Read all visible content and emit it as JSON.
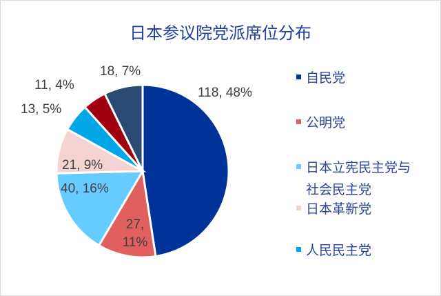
{
  "chart_data": {
    "type": "pie",
    "title": "日本参议院党派席位分布",
    "legend_position": "right",
    "slices": [
      {
        "name": "自民党",
        "value": 118,
        "percent": "48%",
        "label": "118, 48%",
        "color": "#003399"
      },
      {
        "name": "公明党",
        "value": 27,
        "percent": "11%",
        "label_lines": [
          "27,",
          "11%"
        ],
        "color": "#e06060"
      },
      {
        "name": "日本立宪民主党与社会民主党",
        "legend_lines": [
          "日本立宪民主党与",
          "社会民主党"
        ],
        "value": 40,
        "percent": "16%",
        "label": "40, 16%",
        "color": "#66ccff"
      },
      {
        "name": "日本革新党",
        "value": 21,
        "percent": "9%",
        "label": "21, 9%",
        "color": "#f6d3d3"
      },
      {
        "name": "人民民主党",
        "value": 13,
        "percent": "5%",
        "label": "13, 5%",
        "color": "#00a6e6"
      },
      {
        "value": 11,
        "percent": "4%",
        "label": "11, 4%",
        "color": "#a00010"
      },
      {
        "value": 18,
        "percent": "7%",
        "label": "18, 7%",
        "color": "#2a4a72"
      }
    ]
  }
}
